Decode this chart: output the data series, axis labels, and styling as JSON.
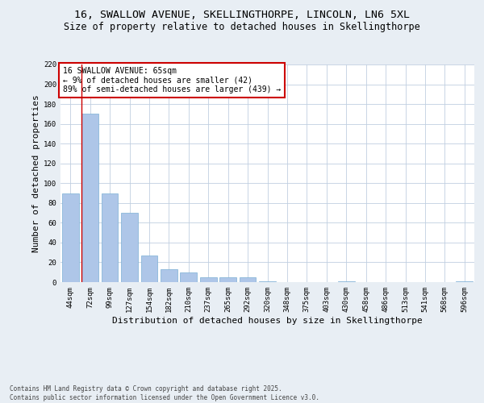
{
  "title1": "16, SWALLOW AVENUE, SKELLINGTHORPE, LINCOLN, LN6 5XL",
  "title2": "Size of property relative to detached houses in Skellingthorpe",
  "xlabel": "Distribution of detached houses by size in Skellingthorpe",
  "ylabel": "Number of detached properties",
  "categories": [
    "44sqm",
    "72sqm",
    "99sqm",
    "127sqm",
    "154sqm",
    "182sqm",
    "210sqm",
    "237sqm",
    "265sqm",
    "292sqm",
    "320sqm",
    "348sqm",
    "375sqm",
    "403sqm",
    "430sqm",
    "458sqm",
    "486sqm",
    "513sqm",
    "541sqm",
    "568sqm",
    "596sqm"
  ],
  "values": [
    90,
    170,
    90,
    70,
    27,
    13,
    10,
    5,
    5,
    5,
    1,
    0,
    0,
    0,
    1,
    0,
    0,
    0,
    0,
    0,
    1
  ],
  "bar_color": "#aec6e8",
  "bar_edge_color": "#7bafd4",
  "vline_color": "#cc0000",
  "vline_pos": 0.575,
  "annotation_text": "16 SWALLOW AVENUE: 65sqm\n← 9% of detached houses are smaller (42)\n89% of semi-detached houses are larger (439) →",
  "annotation_box_color": "#ffffff",
  "annotation_box_edge": "#cc0000",
  "ylim": [
    0,
    220
  ],
  "yticks": [
    0,
    20,
    40,
    60,
    80,
    100,
    120,
    140,
    160,
    180,
    200,
    220
  ],
  "footer": "Contains HM Land Registry data © Crown copyright and database right 2025.\nContains public sector information licensed under the Open Government Licence v3.0.",
  "bg_color": "#e8eef4",
  "plot_bg_color": "#ffffff",
  "grid_color": "#c0cfe0",
  "title_fontsize": 9.5,
  "subtitle_fontsize": 8.5,
  "tick_fontsize": 6.5,
  "label_fontsize": 8,
  "annot_fontsize": 7,
  "footer_fontsize": 5.5
}
